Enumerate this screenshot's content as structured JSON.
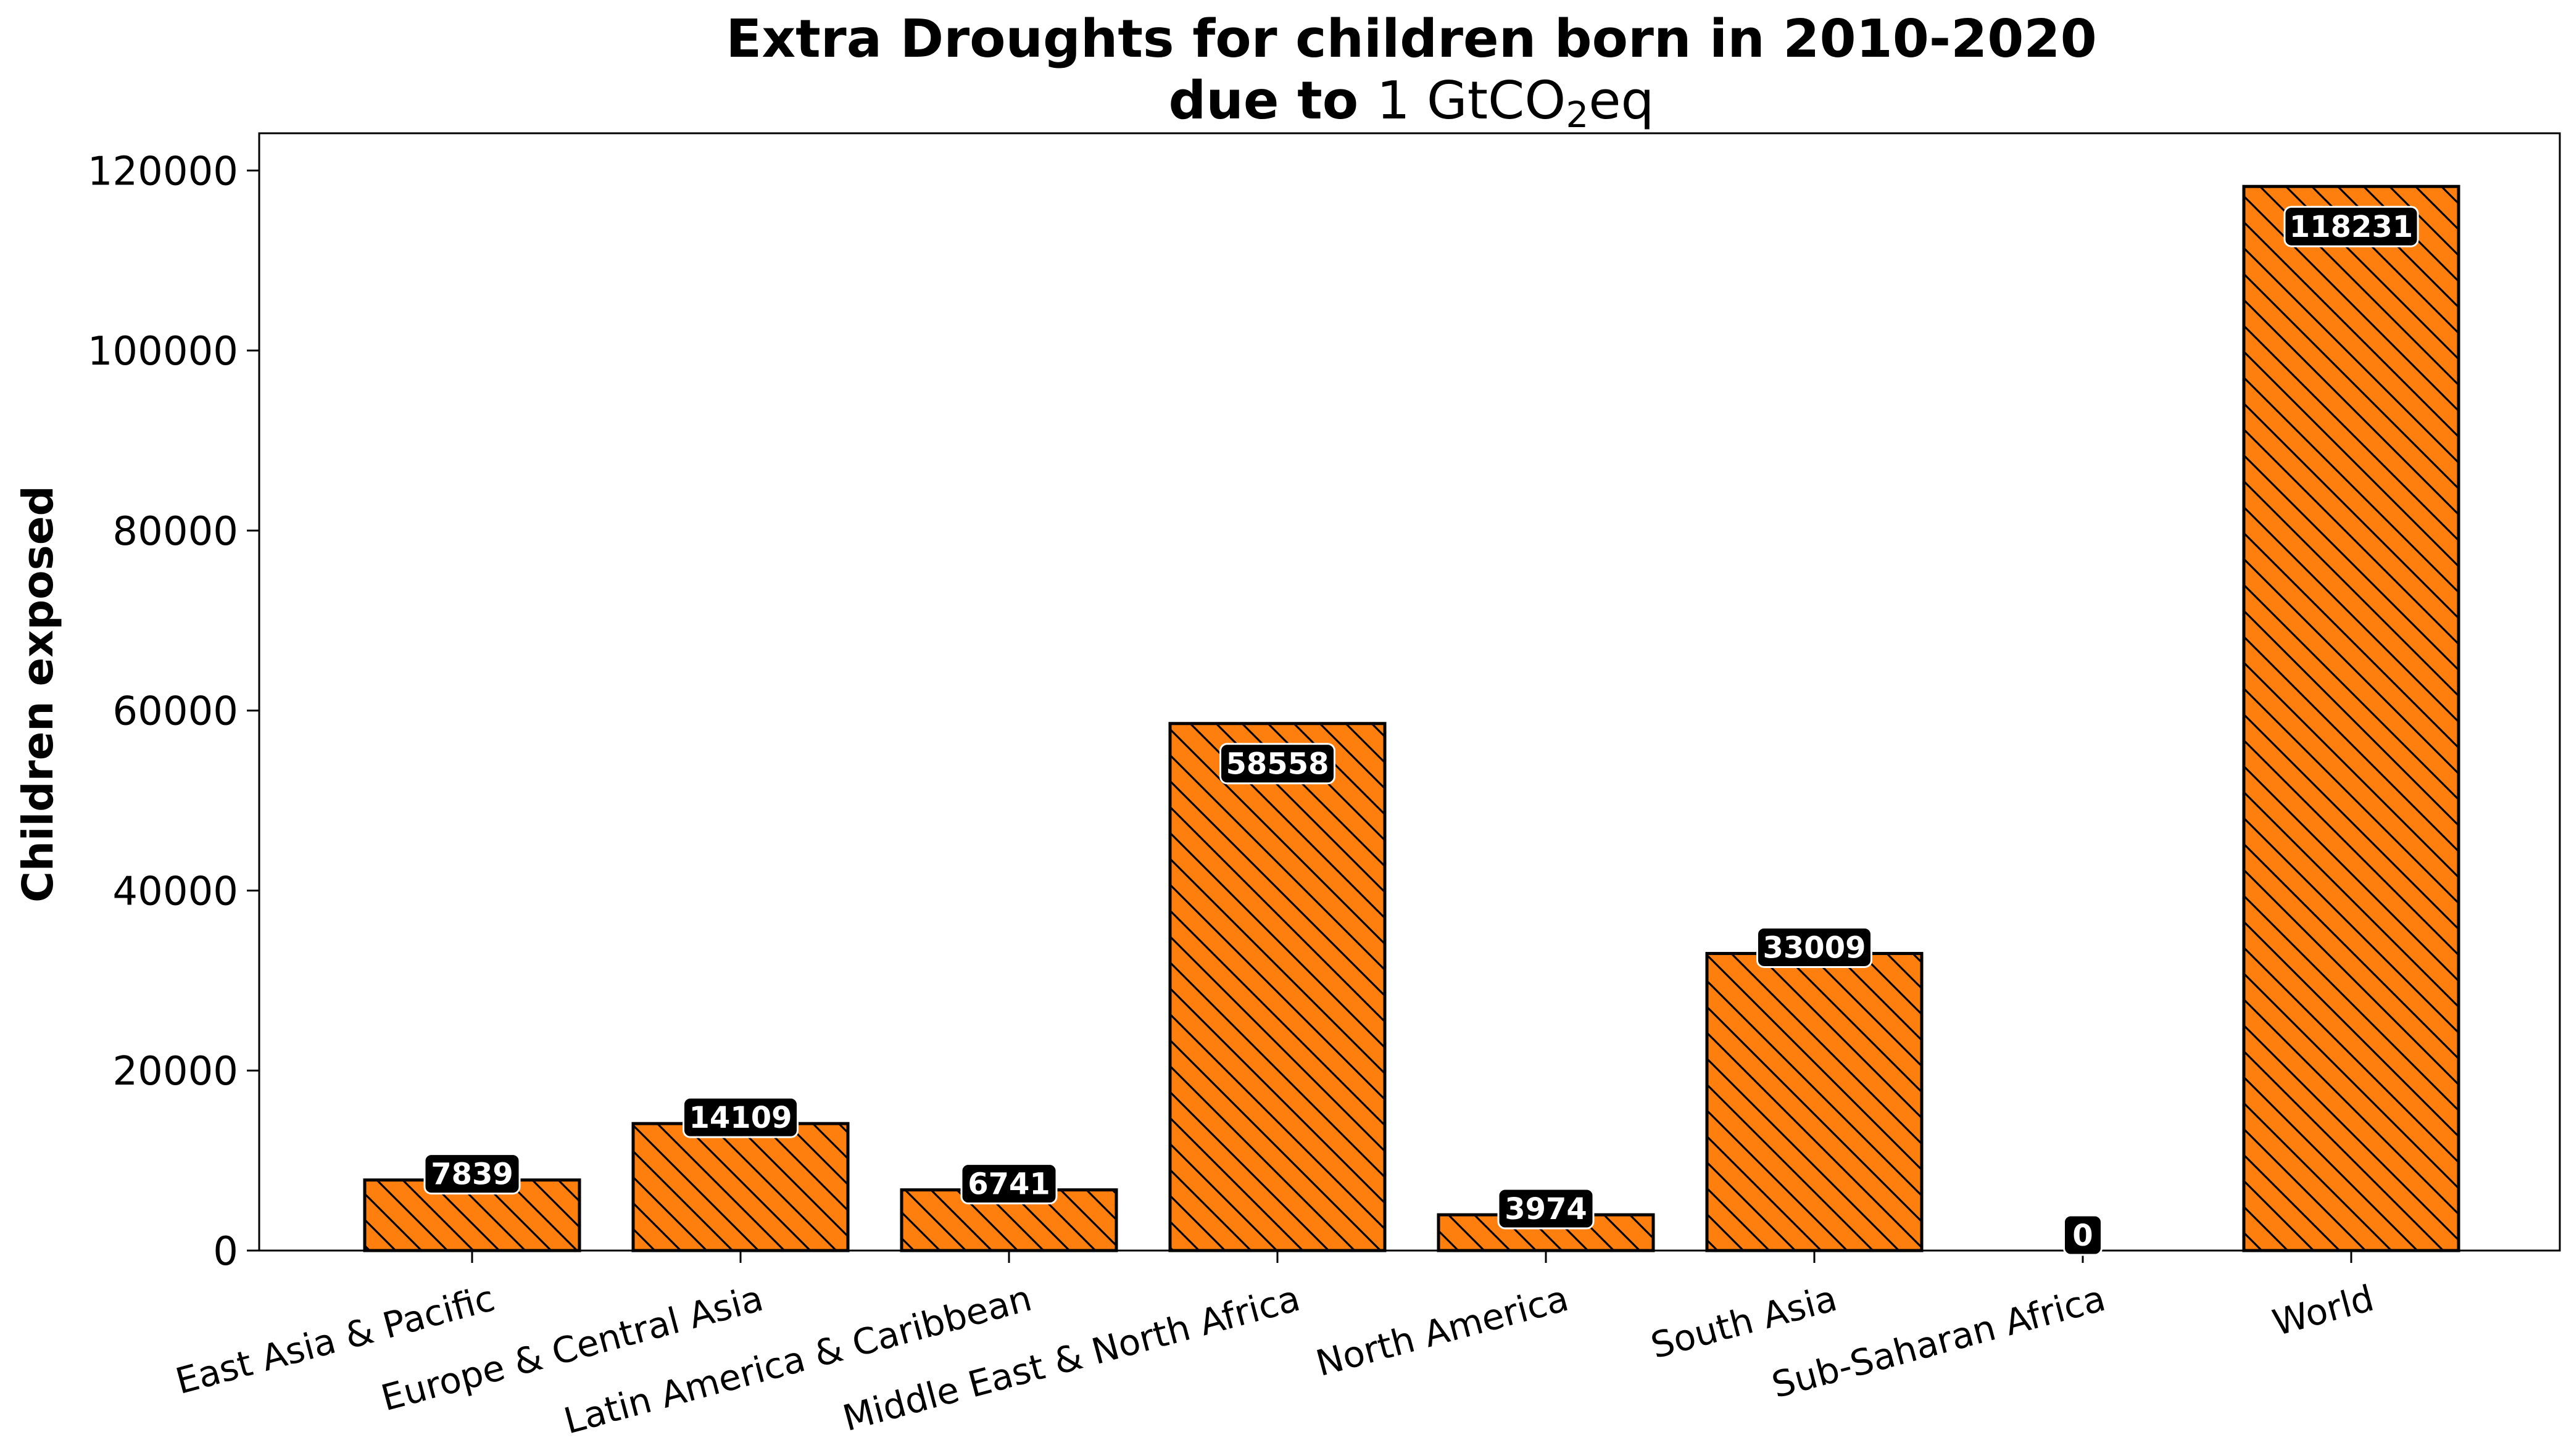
{
  "chart_data": {
    "type": "bar",
    "title": "Extra Droughts for children born in 2010-2020",
    "subtitle": {
      "bold_part": "due to",
      "math_part": "1 GtCO",
      "subscript": "2",
      "suffix": "eq"
    },
    "xlabel": "",
    "ylabel": "Children exposed",
    "categories": [
      "East Asia & Pacific",
      "Europe & Central Asia",
      "Latin America & Caribbean",
      "Middle East & North Africa",
      "North America",
      "South Asia",
      "Sub-Saharan Africa",
      "World"
    ],
    "values": [
      7839,
      14109,
      6741,
      58558,
      3974,
      33009,
      0,
      118231
    ],
    "value_labels": [
      "7839",
      "14109",
      "6741",
      "58558",
      "3974",
      "33009",
      "0",
      "118231"
    ],
    "yticks": [
      0,
      20000,
      40000,
      60000,
      80000,
      100000,
      120000
    ],
    "ytick_labels": [
      "0",
      "20000",
      "40000",
      "60000",
      "80000",
      "100000",
      "120000"
    ],
    "ylim": [
      0,
      124141
    ],
    "bar_color": "#ff7f0e",
    "edge_color": "#000000",
    "hatch": "diagonal",
    "grid": false,
    "legend": false
  }
}
